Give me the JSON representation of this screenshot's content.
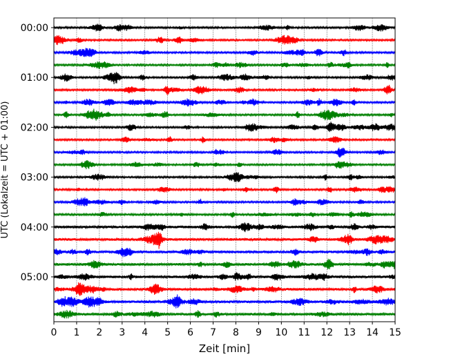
{
  "chart_data": {
    "type": "line",
    "title": "",
    "xlabel": "Zeit  [min]",
    "ylabel": "UTC (Lokalzeit = UTC + 01:00)",
    "xlim": [
      0,
      15
    ],
    "xticks": [
      "0",
      "1",
      "2",
      "3",
      "4",
      "5",
      "6",
      "7",
      "8",
      "9",
      "10",
      "11",
      "12",
      "13",
      "14",
      "15"
    ],
    "row_interval_minutes": 15,
    "row_count": 24,
    "ytick_labels": [
      "00:00",
      "01:00",
      "02:00",
      "03:00",
      "04:00",
      "05:00"
    ],
    "ytick_rows": [
      0,
      4,
      8,
      12,
      16,
      20
    ],
    "color_cycle": [
      "#000000",
      "#ff0000",
      "#0000ff",
      "#008000"
    ],
    "vertical_grid": "dotted",
    "traces": [
      {
        "start": "00:00",
        "color": "#000000"
      },
      {
        "start": "00:15",
        "color": "#ff0000"
      },
      {
        "start": "00:30",
        "color": "#0000ff"
      },
      {
        "start": "00:45",
        "color": "#008000"
      },
      {
        "start": "01:00",
        "color": "#000000"
      },
      {
        "start": "01:15",
        "color": "#ff0000"
      },
      {
        "start": "01:30",
        "color": "#0000ff"
      },
      {
        "start": "01:45",
        "color": "#008000"
      },
      {
        "start": "02:00",
        "color": "#000000"
      },
      {
        "start": "02:15",
        "color": "#ff0000"
      },
      {
        "start": "02:30",
        "color": "#0000ff"
      },
      {
        "start": "02:45",
        "color": "#008000"
      },
      {
        "start": "03:00",
        "color": "#000000"
      },
      {
        "start": "03:15",
        "color": "#ff0000"
      },
      {
        "start": "03:30",
        "color": "#0000ff"
      },
      {
        "start": "03:45",
        "color": "#008000"
      },
      {
        "start": "04:00",
        "color": "#000000"
      },
      {
        "start": "04:15",
        "color": "#ff0000"
      },
      {
        "start": "04:30",
        "color": "#0000ff"
      },
      {
        "start": "04:45",
        "color": "#008000"
      },
      {
        "start": "05:00",
        "color": "#000000"
      },
      {
        "start": "05:15",
        "color": "#ff0000"
      },
      {
        "start": "05:30",
        "color": "#0000ff"
      },
      {
        "start": "05:45",
        "color": "#008000"
      }
    ]
  }
}
